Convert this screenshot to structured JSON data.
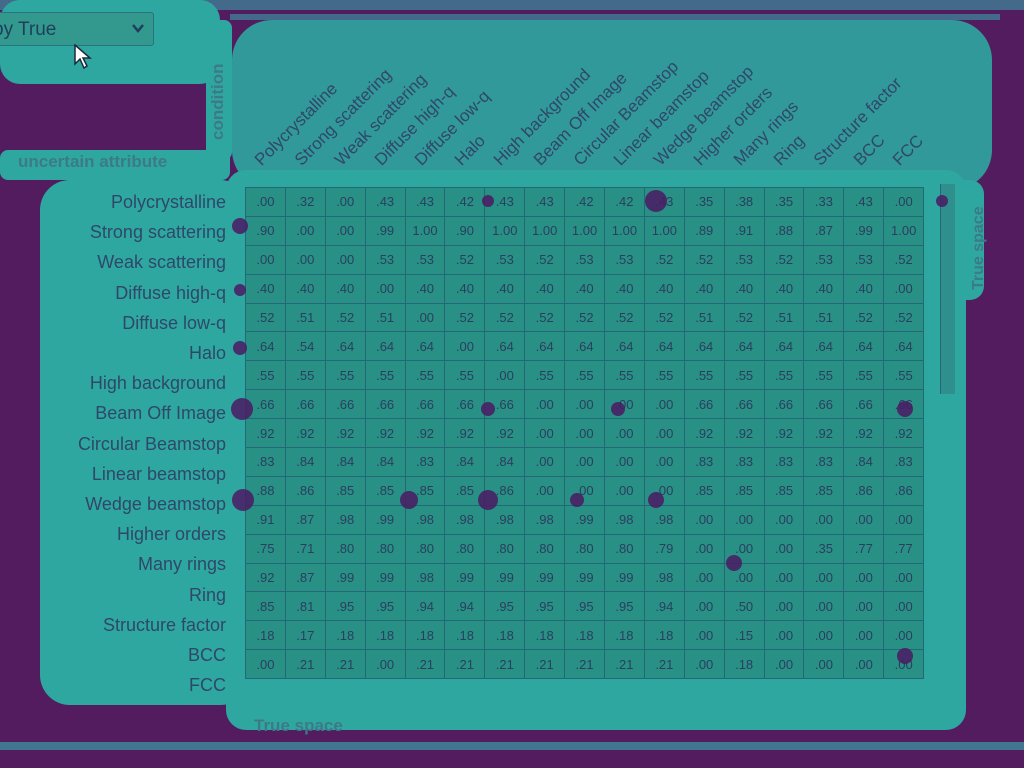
{
  "dropdown": {
    "label": "py True"
  },
  "axes": {
    "left_title": "condition",
    "top_title": "uncertain attribute",
    "right_title": "True space",
    "bottom_title": "True space"
  },
  "columns": [
    "Polycrystalline",
    "Strong scattering",
    "Weak scattering",
    "Diffuse high-q",
    "Diffuse low-q",
    "Halo",
    "High background",
    "Beam Off Image",
    "Circular Beamstop",
    "Linear beamstop",
    "Wedge beamstop",
    "Higher orders",
    "Many rings",
    "Ring",
    "Structure factor",
    "BCC",
    "FCC"
  ],
  "rows": [
    {
      "label": "Polycrystalline",
      "values": [
        ".00",
        ".32",
        ".00",
        ".43",
        ".43",
        ".42",
        ".43",
        ".43",
        ".42",
        ".42",
        ".43",
        ".35",
        ".38",
        ".35",
        ".33",
        ".43",
        ".00"
      ]
    },
    {
      "label": "Strong scattering",
      "values": [
        ".90",
        ".00",
        ".00",
        ".99",
        "1.00",
        ".90",
        "1.00",
        "1.00",
        "1.00",
        "1.00",
        "1.00",
        ".89",
        ".91",
        ".88",
        ".87",
        ".99",
        "1.00"
      ]
    },
    {
      "label": "Weak scattering",
      "values": [
        ".00",
        ".00",
        ".00",
        ".53",
        ".53",
        ".52",
        ".53",
        ".52",
        ".53",
        ".53",
        ".52",
        ".52",
        ".53",
        ".52",
        ".53",
        ".53",
        ".52"
      ]
    },
    {
      "label": "Diffuse high-q",
      "values": [
        ".40",
        ".40",
        ".40",
        ".00",
        ".40",
        ".40",
        ".40",
        ".40",
        ".40",
        ".40",
        ".40",
        ".40",
        ".40",
        ".40",
        ".40",
        ".40",
        ".00"
      ]
    },
    {
      "label": "Diffuse low-q",
      "values": [
        ".52",
        ".51",
        ".52",
        ".51",
        ".00",
        ".52",
        ".52",
        ".52",
        ".52",
        ".52",
        ".52",
        ".51",
        ".52",
        ".51",
        ".51",
        ".52",
        ".52"
      ]
    },
    {
      "label": "Halo",
      "values": [
        ".64",
        ".54",
        ".64",
        ".64",
        ".64",
        ".00",
        ".64",
        ".64",
        ".64",
        ".64",
        ".64",
        ".64",
        ".64",
        ".64",
        ".64",
        ".64",
        ".64"
      ]
    },
    {
      "label": "High background",
      "values": [
        ".55",
        ".55",
        ".55",
        ".55",
        ".55",
        ".55",
        ".00",
        ".55",
        ".55",
        ".55",
        ".55",
        ".55",
        ".55",
        ".55",
        ".55",
        ".55",
        ".55"
      ]
    },
    {
      "label": "Beam Off Image",
      "values": [
        ".66",
        ".66",
        ".66",
        ".66",
        ".66",
        ".66",
        ".66",
        ".00",
        ".00",
        ".00",
        ".00",
        ".66",
        ".66",
        ".66",
        ".66",
        ".66",
        ".66"
      ]
    },
    {
      "label": "Circular Beamstop",
      "values": [
        ".92",
        ".92",
        ".92",
        ".92",
        ".92",
        ".92",
        ".92",
        ".00",
        ".00",
        ".00",
        ".00",
        ".92",
        ".92",
        ".92",
        ".92",
        ".92",
        ".92"
      ]
    },
    {
      "label": "Linear beamstop",
      "values": [
        ".83",
        ".84",
        ".84",
        ".84",
        ".83",
        ".84",
        ".84",
        ".00",
        ".00",
        ".00",
        ".00",
        ".83",
        ".83",
        ".83",
        ".83",
        ".84",
        ".83"
      ]
    },
    {
      "label": "Wedge beamstop",
      "values": [
        ".88",
        ".86",
        ".85",
        ".85",
        ".85",
        ".85",
        ".86",
        ".00",
        ".00",
        ".00",
        ".00",
        ".85",
        ".85",
        ".85",
        ".85",
        ".86",
        ".86"
      ]
    },
    {
      "label": "Higher orders",
      "values": [
        ".91",
        ".87",
        ".98",
        ".99",
        ".98",
        ".98",
        ".98",
        ".98",
        ".99",
        ".98",
        ".98",
        ".00",
        ".00",
        ".00",
        ".00",
        ".00",
        ".00"
      ]
    },
    {
      "label": "Many rings",
      "values": [
        ".75",
        ".71",
        ".80",
        ".80",
        ".80",
        ".80",
        ".80",
        ".80",
        ".80",
        ".80",
        ".79",
        ".00",
        ".00",
        ".00",
        ".35",
        ".77",
        ".77"
      ]
    },
    {
      "label": "Ring",
      "values": [
        ".92",
        ".87",
        ".99",
        ".99",
        ".98",
        ".99",
        ".99",
        ".99",
        ".99",
        ".99",
        ".98",
        ".00",
        ".00",
        ".00",
        ".00",
        ".00",
        ".00"
      ]
    },
    {
      "label": "Structure factor",
      "values": [
        ".85",
        ".81",
        ".95",
        ".95",
        ".94",
        ".94",
        ".95",
        ".95",
        ".95",
        ".95",
        ".94",
        ".00",
        ".50",
        ".00",
        ".00",
        ".00",
        ".00"
      ]
    },
    {
      "label": "BCC",
      "values": [
        ".18",
        ".17",
        ".18",
        ".18",
        ".18",
        ".18",
        ".18",
        ".18",
        ".18",
        ".18",
        ".18",
        ".00",
        ".15",
        ".00",
        ".00",
        ".00",
        ".00"
      ]
    },
    {
      "label": "FCC",
      "values": [
        ".00",
        ".21",
        ".21",
        ".00",
        ".21",
        ".21",
        ".21",
        ".21",
        ".21",
        ".21",
        ".21",
        ".00",
        ".18",
        ".00",
        ".00",
        ".00",
        ".00"
      ]
    }
  ]
}
